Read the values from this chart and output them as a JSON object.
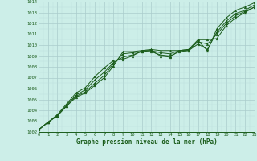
{
  "xlabel": "Graphe pression niveau de la mer (hPa)",
  "xlim": [
    0,
    23
  ],
  "ylim": [
    1002,
    1014
  ],
  "yticks": [
    1002,
    1003,
    1004,
    1005,
    1006,
    1007,
    1008,
    1009,
    1010,
    1011,
    1012,
    1013,
    1014
  ],
  "xticks": [
    0,
    1,
    2,
    3,
    4,
    5,
    6,
    7,
    8,
    9,
    10,
    11,
    12,
    13,
    14,
    15,
    16,
    17,
    18,
    19,
    20,
    21,
    22,
    23
  ],
  "background_color": "#cceee8",
  "grid_color_major": "#aacccc",
  "grid_color_minor": "#bbdddd",
  "line_color": "#1a5c1a",
  "series": [
    [
      1002.2,
      1002.9,
      1003.5,
      1004.4,
      1005.2,
      1005.6,
      1006.3,
      1007.0,
      1008.1,
      1009.4,
      1009.4,
      1009.5,
      1009.5,
      1009.3,
      1009.2,
      1009.5,
      1009.5,
      1010.4,
      1009.5,
      1011.5,
      1012.5,
      1013.2,
      1013.5,
      1013.9
    ],
    [
      1002.2,
      1002.9,
      1003.5,
      1004.4,
      1005.3,
      1005.7,
      1006.5,
      1007.2,
      1008.3,
      1009.2,
      1009.3,
      1009.4,
      1009.4,
      1009.1,
      1009.0,
      1009.4,
      1009.5,
      1010.1,
      1009.6,
      1011.2,
      1012.2,
      1012.9,
      1013.2,
      1013.7
    ],
    [
      1002.2,
      1002.9,
      1003.5,
      1004.5,
      1005.4,
      1005.9,
      1006.8,
      1007.5,
      1008.4,
      1008.9,
      1009.1,
      1009.4,
      1009.5,
      1009.0,
      1008.9,
      1009.5,
      1009.6,
      1010.3,
      1010.1,
      1011.0,
      1012.0,
      1012.7,
      1013.1,
      1013.5
    ],
    [
      1002.2,
      1002.9,
      1003.6,
      1004.6,
      1005.6,
      1006.1,
      1007.1,
      1007.9,
      1008.6,
      1008.7,
      1009.0,
      1009.5,
      1009.6,
      1009.5,
      1009.5,
      1009.5,
      1009.6,
      1010.5,
      1010.5,
      1010.6,
      1011.8,
      1012.5,
      1013.0,
      1013.5
    ]
  ]
}
